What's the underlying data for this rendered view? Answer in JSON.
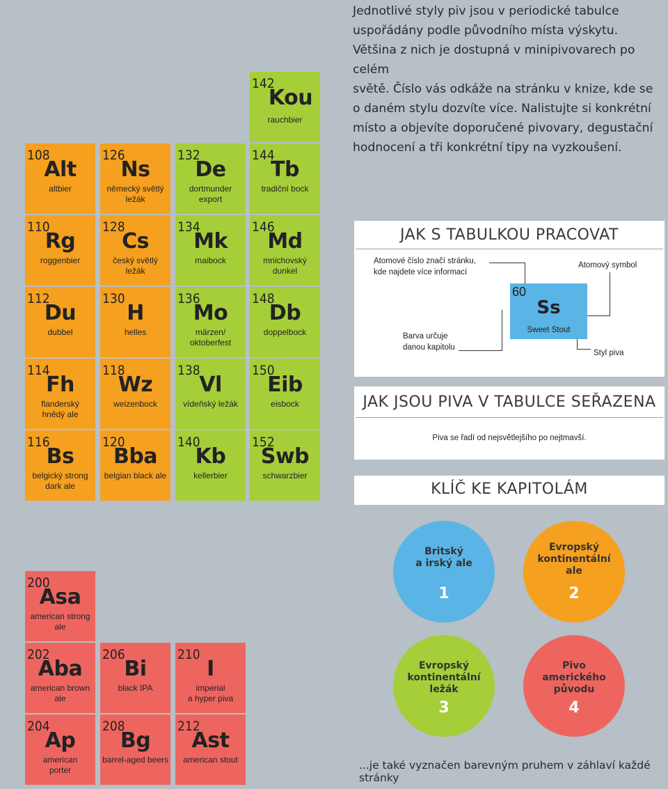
{
  "intro": "Jednotlivé styly piv jsou v periodické tabulce\nuspořádány podle původního místa výskytu.\nVětšina z nich je dostupná v minipivovarech po celém\nsvětě. Číslo vás odkáže na stránku v knize, kde se\no daném stylu dozvíte více. Nalistujte si konkrétní\nmísto a objevíte doporučené pivovary, degustační\nhodnocení a tři konkrétní tipy na vyzkoušení.",
  "colors": {
    "orange": "#f6a01f",
    "green": "#a6ce39",
    "red": "#ee6560",
    "blue": "#5ab4e5",
    "background": "#b6c0c6"
  },
  "elements": {
    "e142": {
      "num": "142",
      "sym": "Kou",
      "name": "rauchbier"
    },
    "e108": {
      "num": "108",
      "sym": "Alt",
      "name": "altbier"
    },
    "e126": {
      "num": "126",
      "sym": "Ns",
      "name": "německý světlý\nležák"
    },
    "e132": {
      "num": "132",
      "sym": "De",
      "name": "dortmunder\nexport"
    },
    "e144": {
      "num": "144",
      "sym": "Tb",
      "name": "tradiční bock"
    },
    "e110": {
      "num": "110",
      "sym": "Rg",
      "name": "roggenbier"
    },
    "e128": {
      "num": "128",
      "sym": "Cs",
      "name": "český světlý\nležák"
    },
    "e134": {
      "num": "134",
      "sym": "Mk",
      "name": "maibock"
    },
    "e146": {
      "num": "146",
      "sym": "Md",
      "name": "mnichovský dunkel"
    },
    "e112": {
      "num": "112",
      "sym": "Du",
      "name": "dubbel"
    },
    "e130": {
      "num": "130",
      "sym": "H",
      "name": "helles"
    },
    "e136": {
      "num": "136",
      "sym": "Mo",
      "name": "märzen/\noktoberfest"
    },
    "e148": {
      "num": "148",
      "sym": "Db",
      "name": "doppelbock"
    },
    "e114": {
      "num": "114",
      "sym": "Fh",
      "name": "flanderský\nhnědý ale"
    },
    "e118": {
      "num": "118",
      "sym": "Wz",
      "name": "weizenbock"
    },
    "e138": {
      "num": "138",
      "sym": "Vl",
      "name": "vídeňský ležák"
    },
    "e150": {
      "num": "150",
      "sym": "Eib",
      "name": "eisbock"
    },
    "e116": {
      "num": "116",
      "sym": "Bs",
      "name": "belgický strong\ndark ale"
    },
    "e120": {
      "num": "120",
      "sym": "Bba",
      "name": "belgian black ale"
    },
    "e140": {
      "num": "140",
      "sym": "Kb",
      "name": "kellerbier"
    },
    "e152": {
      "num": "152",
      "sym": "Swb",
      "name": "schwarzbier"
    },
    "e200": {
      "num": "200",
      "sym": "Asa",
      "name": "american strong\nale"
    },
    "e202": {
      "num": "202",
      "sym": "Aba",
      "name": "american brown\nale"
    },
    "e206": {
      "num": "206",
      "sym": "Bi",
      "name": "black IPA"
    },
    "e210": {
      "num": "210",
      "sym": "I",
      "name": "imperial\na hyper piva"
    },
    "e204": {
      "num": "204",
      "sym": "Ap",
      "name": "american\nporter"
    },
    "e208": {
      "num": "208",
      "sym": "Bg",
      "name": "barrel-aged beers"
    },
    "e212": {
      "num": "212",
      "sym": "Ast",
      "name": "american stout"
    }
  },
  "howto": {
    "title": "JAK S TABULKOU PRACOVAT",
    "label_number": "Atomové číslo značí stránku,\nkde najdete více informací",
    "label_symbol": "Atomový symbol",
    "label_color": "Barva určuje\ndanou kapitolu",
    "label_style": "Styl piva",
    "sample": {
      "num": "60",
      "sym": "Ss",
      "name": "Sweet Stout"
    }
  },
  "order": {
    "title": "JAK JSOU PIVA V TABULCE SEŘAZENA",
    "text": "Piva se řadí od nejsvětlejšího po nejtmavší."
  },
  "key": {
    "title": "KLÍČ KE KAPITOLÁM",
    "chapters": [
      {
        "label": "Britský\na irský ale",
        "number": "1"
      },
      {
        "label": "Evropský\nkontinentální\nale",
        "number": "2"
      },
      {
        "label": "Evropský\nkontinentální\nležák",
        "number": "3"
      },
      {
        "label": "Pivo\namerického\npůvodu",
        "number": "4"
      }
    ]
  },
  "footer": "...je také vyznačen barevným pruhem v záhlaví každé stránky"
}
